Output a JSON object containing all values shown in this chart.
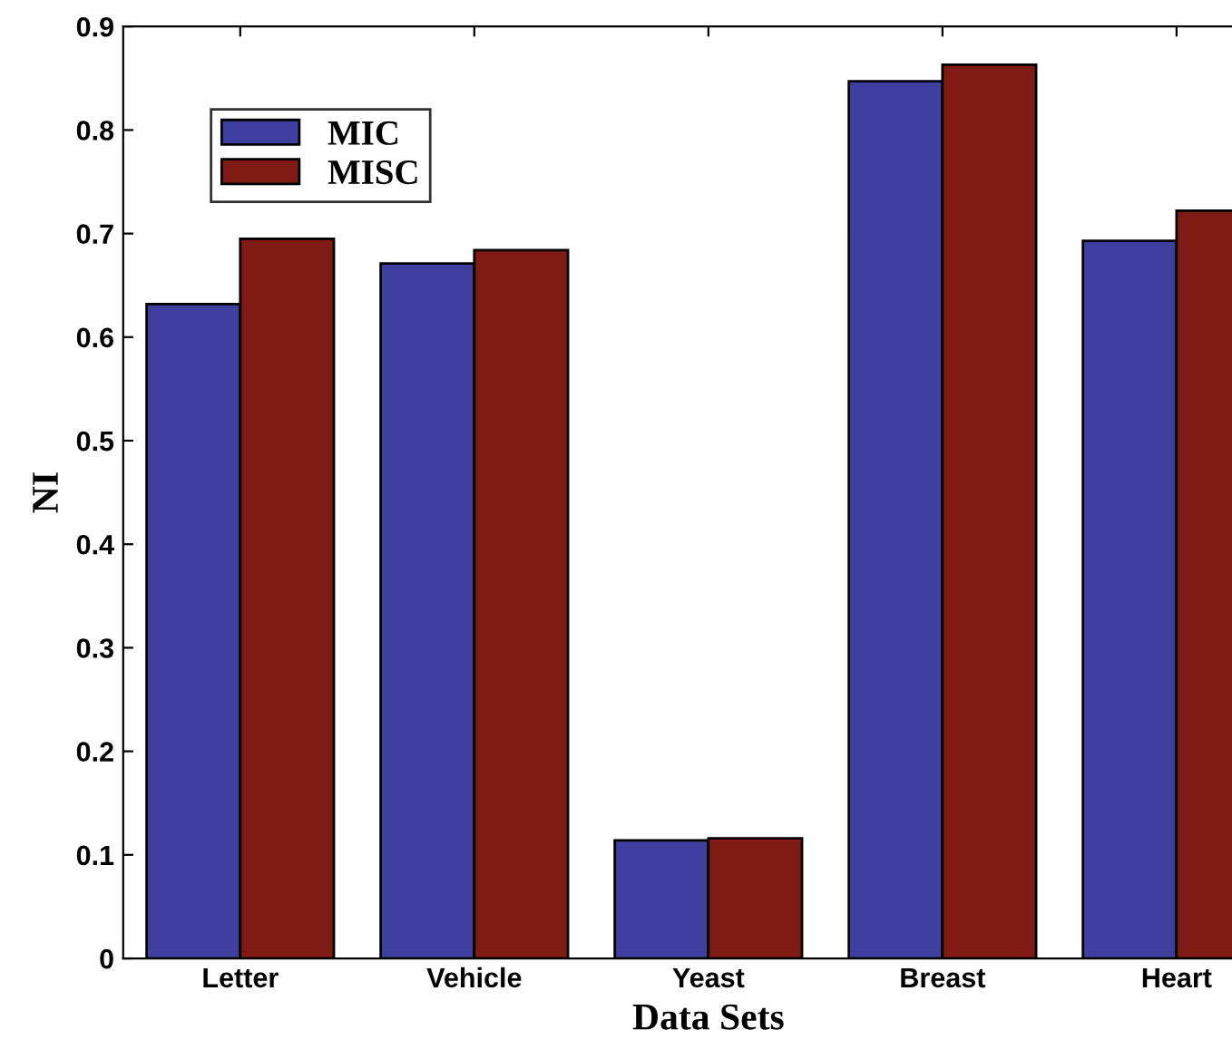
{
  "chart_data": {
    "type": "bar",
    "xlabel": "Data Sets",
    "ylabel": "NI",
    "categories": [
      "Letter",
      "Vehicle",
      "Yeast",
      "Breast",
      "Heart"
    ],
    "series": [
      {
        "name": "MIC",
        "color": "#3f3f9f",
        "values": [
          0.632,
          0.671,
          0.114,
          0.847,
          0.693
        ]
      },
      {
        "name": "MISC",
        "color": "#7f1a14",
        "values": [
          0.695,
          0.684,
          0.116,
          0.863,
          0.722
        ]
      }
    ],
    "ylim": [
      0,
      0.9
    ],
    "yticks": [
      0,
      0.1,
      0.2,
      0.3,
      0.4,
      0.5,
      0.6,
      0.7,
      0.8,
      0.9
    ],
    "grid": false,
    "legend": "top left"
  }
}
